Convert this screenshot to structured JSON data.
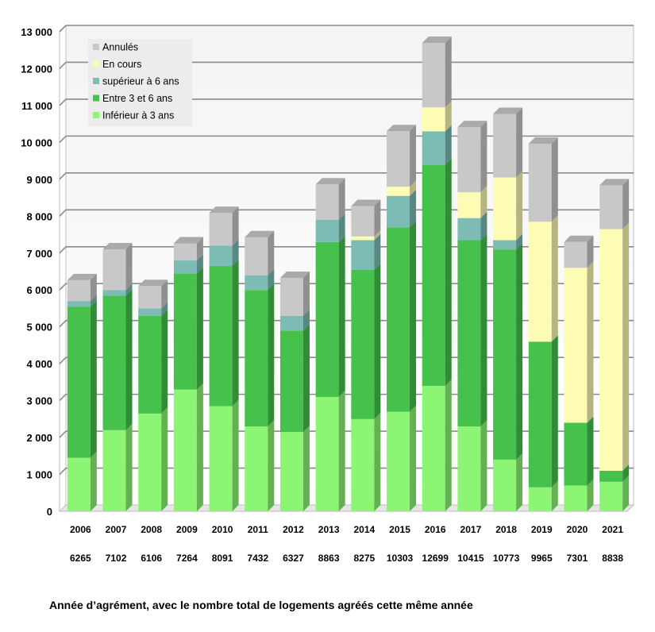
{
  "chart_data": {
    "type": "bar",
    "stacked": true,
    "xlabel": "Année d’agrément, avec le nombre total de logements agréés cette même année",
    "ylabel": "",
    "ylim": [
      0,
      13000
    ],
    "grid": true,
    "legend_position": "top-left",
    "categories": [
      "2006",
      "2007",
      "2008",
      "2009",
      "2010",
      "2011",
      "2012",
      "2013",
      "2014",
      "2015",
      "2016",
      "2017",
      "2018",
      "2019",
      "2020",
      "2021"
    ],
    "totals": [
      "6265",
      "7102",
      "6106",
      "7264",
      "8091",
      "7432",
      "6327",
      "8863",
      "8275",
      "10303",
      "12699",
      "10415",
      "10773",
      "9965",
      "7301",
      "8838"
    ],
    "yticks": [
      {
        "value": 0,
        "label": "0"
      },
      {
        "value": 1000,
        "label": "1 000"
      },
      {
        "value": 2000,
        "label": "2 000"
      },
      {
        "value": 3000,
        "label": "3 000"
      },
      {
        "value": 4000,
        "label": "4 000"
      },
      {
        "value": 5000,
        "label": "5 000"
      },
      {
        "value": 6000,
        "label": "6 000"
      },
      {
        "value": 7000,
        "label": "7 000"
      },
      {
        "value": 8000,
        "label": "8 000"
      },
      {
        "value": 9000,
        "label": "9 000"
      },
      {
        "value": 10000,
        "label": "10 000"
      },
      {
        "value": 11000,
        "label": "11 000"
      },
      {
        "value": 12000,
        "label": "12 000"
      },
      {
        "value": 13000,
        "label": "13 000"
      }
    ],
    "series": [
      {
        "name": "Inférieur à 3 ans",
        "color": "#8cf573",
        "values": [
          1450,
          2200,
          2650,
          3300,
          2850,
          2300,
          2150,
          3100,
          2500,
          2700,
          3400,
          2300,
          1400,
          650,
          700,
          800
        ]
      },
      {
        "name": "Entre 3 et 6 ans",
        "color": "#46c24c",
        "values": [
          4100,
          3650,
          2650,
          3150,
          3800,
          3700,
          2750,
          4200,
          4050,
          5000,
          6000,
          5050,
          5700,
          3950,
          1700,
          300
        ]
      },
      {
        "name": "supérieur à 6 ans",
        "color": "#7cbcb4",
        "values": [
          150,
          150,
          200,
          350,
          550,
          400,
          400,
          600,
          800,
          850,
          900,
          600,
          250,
          0,
          0,
          0
        ]
      },
      {
        "name": "En cours",
        "color": "#fdfcb4",
        "values": [
          0,
          0,
          0,
          0,
          0,
          0,
          0,
          0,
          100,
          250,
          650,
          700,
          1700,
          3250,
          4200,
          6550
        ]
      },
      {
        "name": "Annulés",
        "color": "#c8c8c8",
        "values": [
          565,
          1102,
          606,
          464,
          891,
          1032,
          1027,
          963,
          825,
          1503,
          1749,
          1765,
          1723,
          2115,
          701,
          1188
        ]
      }
    ]
  }
}
